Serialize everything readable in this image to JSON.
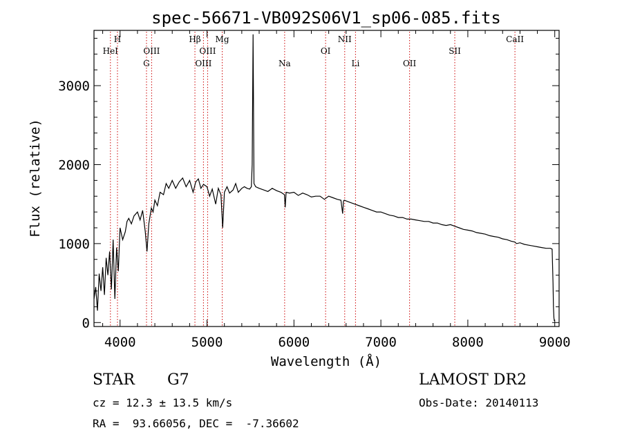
{
  "chart_data": {
    "type": "line",
    "title": "spec-56671-VB092S06V1_sp06-085.fits",
    "xlabel": "Wavelength (Å)",
    "ylabel": "Flux (relative)",
    "xlim": [
      3700,
      9050
    ],
    "ylim": [
      -50,
      3700
    ],
    "x_ticks": [
      4000,
      5000,
      6000,
      7000,
      8000,
      9000
    ],
    "y_ticks": [
      0,
      1000,
      2000,
      3000
    ],
    "line_color": "#000000",
    "marker_color": "#cc0000",
    "series": [
      {
        "x": [
          3700,
          3720,
          3740,
          3760,
          3780,
          3800,
          3820,
          3840,
          3860,
          3880,
          3900,
          3920,
          3940,
          3960,
          3980,
          4000,
          4030,
          4060,
          4080,
          4100,
          4130,
          4160,
          4200,
          4230,
          4260,
          4290,
          4310,
          4330,
          4360,
          4380,
          4400,
          4430,
          4460,
          4500,
          4530,
          4560,
          4600,
          4640,
          4680,
          4720,
          4760,
          4800,
          4840,
          4870,
          4900,
          4930,
          4960,
          5000,
          5030,
          5060,
          5100,
          5130,
          5160,
          5180,
          5200,
          5230,
          5260,
          5300,
          5330,
          5360,
          5400,
          5430,
          5460,
          5490,
          5510,
          5520,
          5530,
          5540,
          5560,
          5600,
          5650,
          5700,
          5750,
          5800,
          5850,
          5890,
          5900,
          5910,
          5950,
          6000,
          6050,
          6100,
          6150,
          6200,
          6250,
          6300,
          6350,
          6400,
          6450,
          6500,
          6540,
          6560,
          6570,
          6580,
          6600,
          6650,
          6700,
          6750,
          6800,
          6850,
          6900,
          6950,
          7000,
          7050,
          7100,
          7150,
          7200,
          7250,
          7300,
          7350,
          7400,
          7450,
          7500,
          7550,
          7600,
          7650,
          7700,
          7750,
          7800,
          7850,
          7900,
          7950,
          8000,
          8050,
          8100,
          8150,
          8200,
          8250,
          8300,
          8350,
          8400,
          8450,
          8500,
          8540,
          8560,
          8600,
          8650,
          8700,
          8750,
          8800,
          8850,
          8900,
          8950,
          8970,
          8980,
          8985,
          8990,
          8995
        ],
        "y": [
          300,
          450,
          150,
          620,
          400,
          700,
          350,
          820,
          600,
          900,
          420,
          1050,
          300,
          950,
          650,
          1200,
          1050,
          1150,
          1280,
          1320,
          1250,
          1350,
          1400,
          1300,
          1420,
          1150,
          900,
          1250,
          1450,
          1400,
          1550,
          1480,
          1650,
          1620,
          1760,
          1700,
          1800,
          1700,
          1780,
          1830,
          1720,
          1800,
          1650,
          1780,
          1820,
          1700,
          1750,
          1720,
          1600,
          1690,
          1500,
          1700,
          1620,
          1200,
          1650,
          1720,
          1640,
          1680,
          1760,
          1650,
          1700,
          1720,
          1700,
          1690,
          1720,
          2000,
          3650,
          1760,
          1720,
          1700,
          1680,
          1660,
          1700,
          1670,
          1650,
          1620,
          1460,
          1650,
          1640,
          1650,
          1610,
          1640,
          1620,
          1590,
          1600,
          1600,
          1560,
          1600,
          1580,
          1560,
          1550,
          1380,
          1540,
          1550,
          1540,
          1520,
          1500,
          1480,
          1460,
          1440,
          1420,
          1400,
          1400,
          1380,
          1360,
          1350,
          1330,
          1330,
          1310,
          1310,
          1300,
          1290,
          1280,
          1280,
          1260,
          1260,
          1240,
          1230,
          1240,
          1220,
          1200,
          1180,
          1170,
          1160,
          1140,
          1130,
          1120,
          1100,
          1090,
          1080,
          1060,
          1050,
          1030,
          1020,
          1000,
          1010,
          990,
          980,
          970,
          960,
          950,
          940,
          940,
          930,
          500,
          200,
          60,
          20
        ]
      }
    ],
    "line_markers": [
      {
        "label": "H",
        "x": 3970,
        "row": 0
      },
      {
        "label": "HeI",
        "x": 3889,
        "row": 1
      },
      {
        "label": "OIII",
        "x": 4363,
        "row": 1
      },
      {
        "label": "G",
        "x": 4304,
        "row": 2
      },
      {
        "label": "Hβ",
        "x": 4861,
        "row": 0
      },
      {
        "label": "OIII",
        "x": 5007,
        "row": 1
      },
      {
        "label": "OIII",
        "x": 4959,
        "row": 2
      },
      {
        "label": "Mg",
        "x": 5175,
        "row": 0
      },
      {
        "label": "Na",
        "x": 5893,
        "row": 2
      },
      {
        "label": "OI",
        "x": 6364,
        "row": 1
      },
      {
        "label": "NII",
        "x": 6584,
        "row": 0
      },
      {
        "label": "Li",
        "x": 6708,
        "row": 2
      },
      {
        "label": "OII",
        "x": 7330,
        "row": 2
      },
      {
        "label": "SII",
        "x": 7850,
        "row": 1
      },
      {
        "label": "CaII",
        "x": 8542,
        "row": 0
      }
    ]
  },
  "info": {
    "object_class": "STAR",
    "subclass": "G7",
    "survey": "LAMOST DR2",
    "redshift": "cz = 12.3 ± 13.5 km/s",
    "obs_date": "Obs-Date: 20140113",
    "coords": "RA =  93.66056, DEC =  -7.36602"
  }
}
